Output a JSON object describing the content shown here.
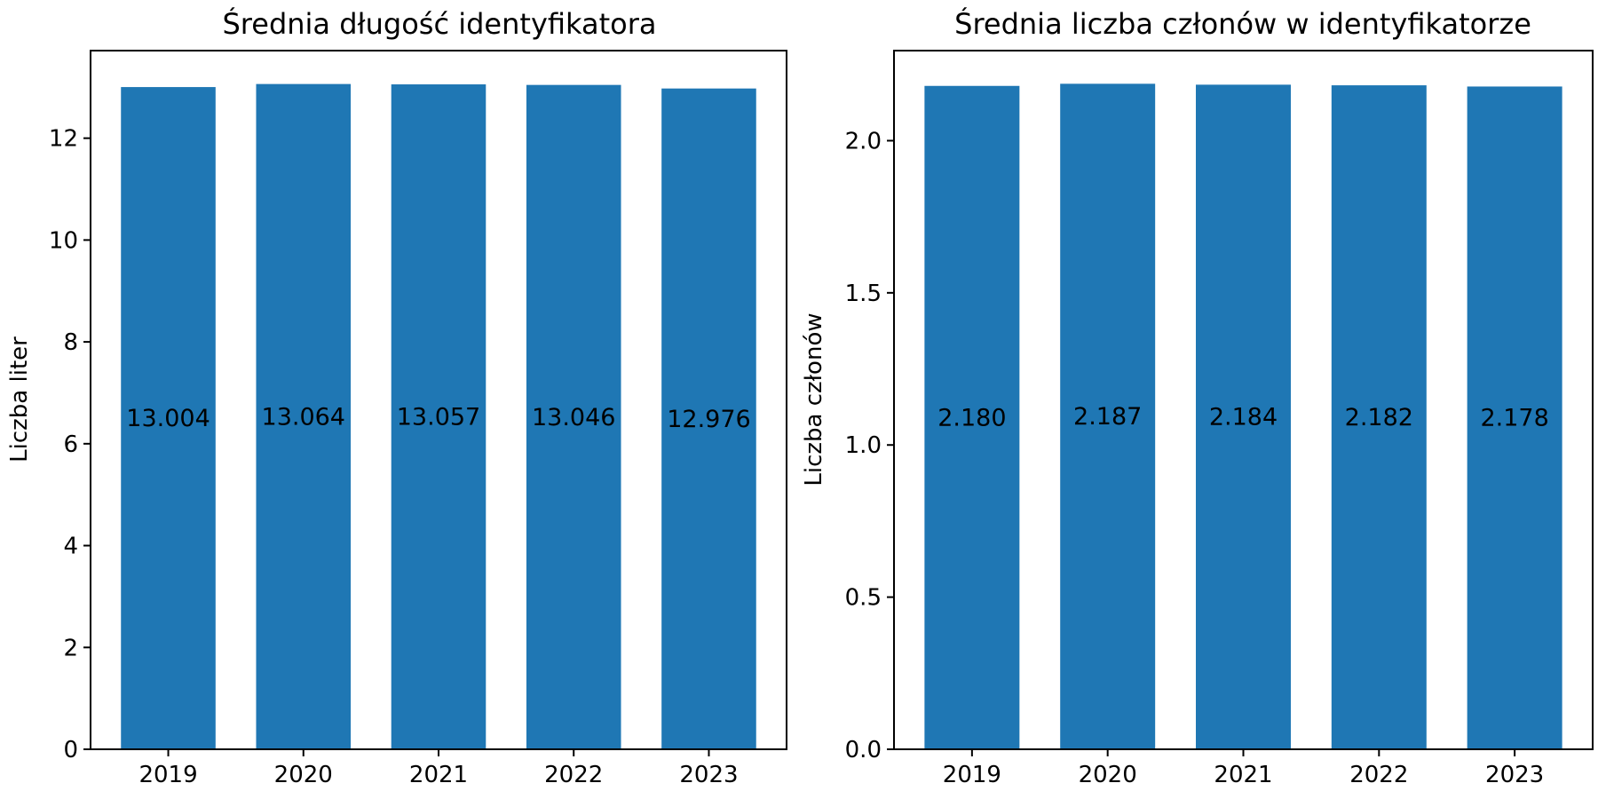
{
  "chart_data": [
    {
      "type": "bar",
      "title": "Średnia długość identyfikatora",
      "xlabel": "",
      "ylabel": "Liczba liter",
      "categories": [
        "2019",
        "2020",
        "2021",
        "2022",
        "2023"
      ],
      "values": [
        13.004,
        13.064,
        13.057,
        13.046,
        12.976
      ],
      "value_labels": [
        "13.004",
        "13.064",
        "13.057",
        "13.046",
        "12.976"
      ],
      "yticks": [
        0,
        2,
        4,
        6,
        8,
        10,
        12
      ],
      "ytick_labels": [
        "0",
        "2",
        "4",
        "6",
        "8",
        "10",
        "12"
      ],
      "ylim": [
        0,
        13.72
      ],
      "bar_color": "#1f77b4",
      "grid": false,
      "legend": "none"
    },
    {
      "type": "bar",
      "title": "Średnia liczba członów w identyfikatorze",
      "xlabel": "",
      "ylabel": "Liczba członów",
      "categories": [
        "2019",
        "2020",
        "2021",
        "2022",
        "2023"
      ],
      "values": [
        2.18,
        2.187,
        2.184,
        2.182,
        2.178
      ],
      "value_labels": [
        "2.180",
        "2.187",
        "2.184",
        "2.182",
        "2.178"
      ],
      "yticks": [
        0.0,
        0.5,
        1.0,
        1.5,
        2.0
      ],
      "ytick_labels": [
        "0.0",
        "0.5",
        "1.0",
        "1.5",
        "2.0"
      ],
      "ylim": [
        0,
        2.296
      ],
      "bar_color": "#1f77b4",
      "grid": false,
      "legend": "none"
    }
  ]
}
